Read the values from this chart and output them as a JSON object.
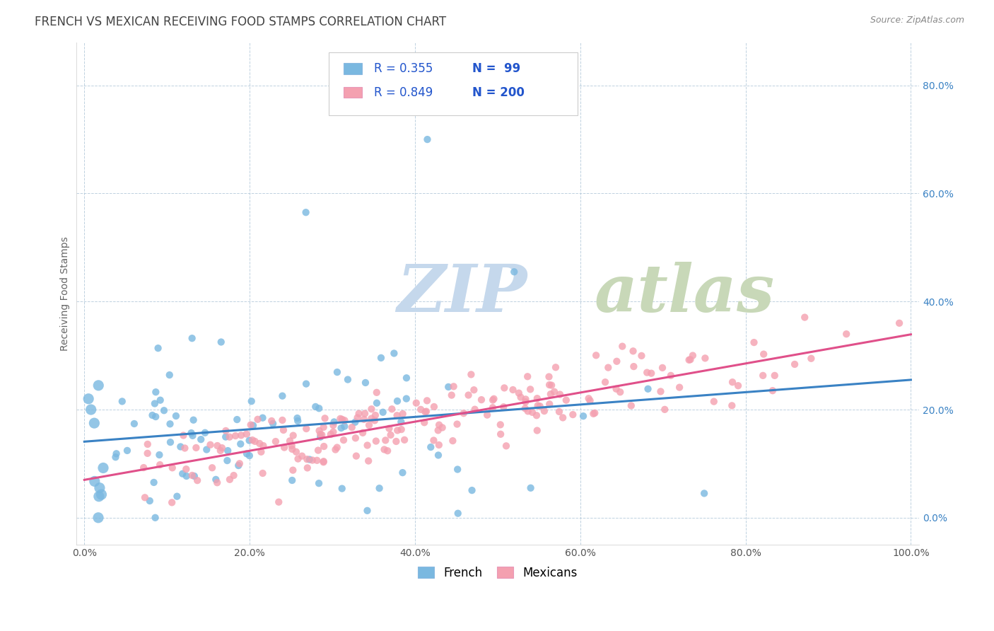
{
  "title": "FRENCH VS MEXICAN RECEIVING FOOD STAMPS CORRELATION CHART",
  "source": "Source: ZipAtlas.com",
  "ylabel": "Receiving Food Stamps",
  "xlim": [
    -0.01,
    1.01
  ],
  "ylim": [
    -0.05,
    0.88
  ],
  "x_ticks": [
    0.0,
    0.2,
    0.4,
    0.6,
    0.8,
    1.0
  ],
  "x_tick_labels": [
    "0.0%",
    "20.0%",
    "40.0%",
    "60.0%",
    "80.0%",
    "100.0%"
  ],
  "y_ticks": [
    0.0,
    0.2,
    0.4,
    0.6,
    0.8
  ],
  "y_tick_labels": [
    "0.0%",
    "20.0%",
    "40.0%",
    "60.0%",
    "80.0%"
  ],
  "french_color": "#7ab8e0",
  "mexican_color": "#f4a0b0",
  "french_R": 0.355,
  "french_N": 99,
  "mexican_R": 0.849,
  "mexican_N": 200,
  "french_line_color": "#3a82c4",
  "mexican_line_color": "#e0508a",
  "watermark_zip_color": "#c5d8ec",
  "watermark_atlas_color": "#c8d8b8",
  "background_color": "#ffffff",
  "grid_color": "#aec6d8",
  "title_color": "#444444",
  "title_fontsize": 12,
  "axis_label_fontsize": 10,
  "tick_fontsize": 10,
  "legend_fontsize": 12,
  "source_fontsize": 9,
  "stat_color": "#2255cc"
}
